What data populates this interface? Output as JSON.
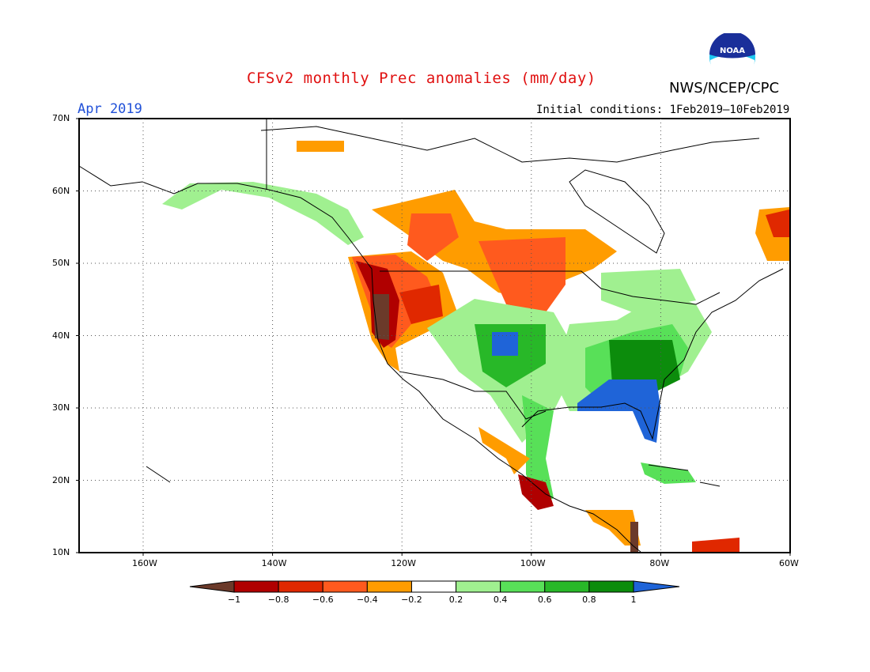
{
  "header": {
    "title": "CFSv2 monthly Prec anomalies (mm/day)",
    "organization": "NWS/NCEP/CPC",
    "logo_text": "NOAA",
    "valid_month": "Apr 2019",
    "initial_conditions": "Initial conditions: 1Feb2019–10Feb2019"
  },
  "map": {
    "lat_labels": [
      "70N",
      "60N",
      "50N",
      "40N",
      "30N",
      "20N",
      "10N"
    ],
    "lon_labels": [
      "160W",
      "140W",
      "120W",
      "100W",
      "80W",
      "60W"
    ],
    "gridlines": "dotted"
  },
  "colorbar": {
    "labels": [
      "−1",
      "−0.8",
      "−0.6",
      "−0.4",
      "−0.2",
      "0.2",
      "0.4",
      "0.6",
      "0.8",
      "1"
    ],
    "colors": [
      "#6b3a2a",
      "#b00000",
      "#e02800",
      "#ff5a1e",
      "#ff9c00",
      "#ffffff",
      "#a0f090",
      "#58e058",
      "#28b828",
      "#0c8c0c",
      "#1f64d8"
    ]
  },
  "colors": {
    "title": "#e01010",
    "month": "#2050d8",
    "coast": "#000000"
  }
}
